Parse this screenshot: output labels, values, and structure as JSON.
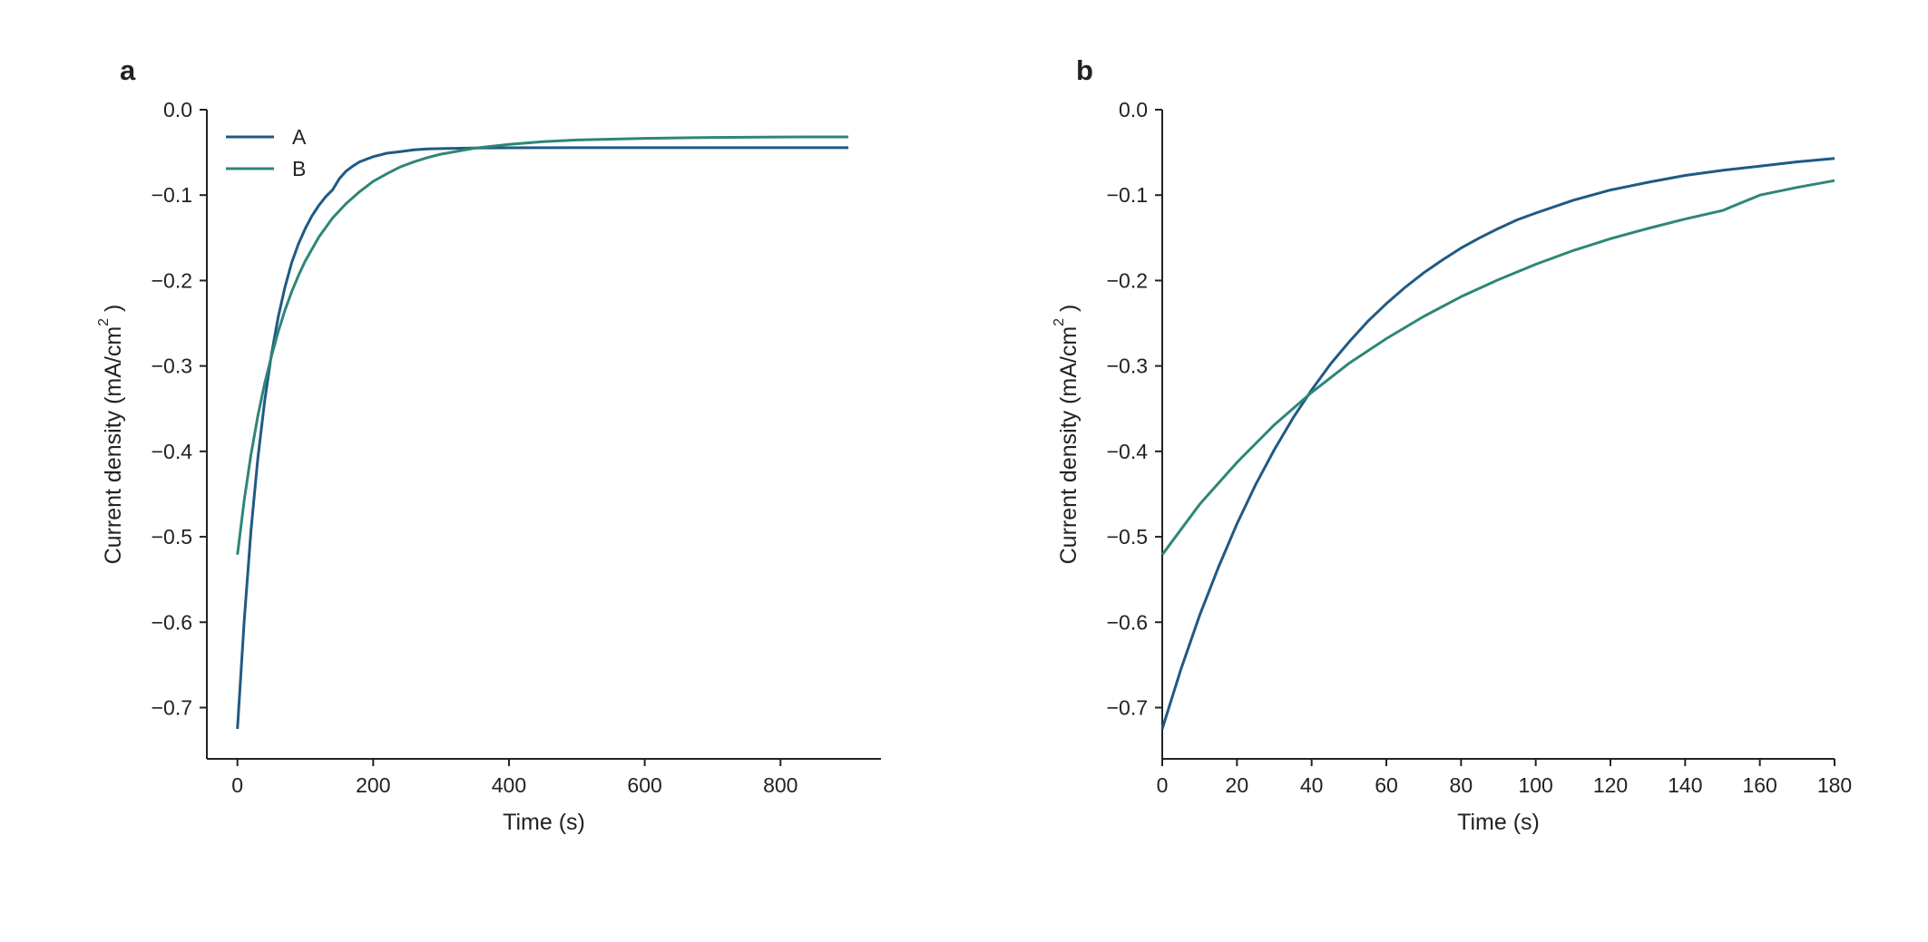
{
  "chart_data": [
    {
      "panel_label": "a",
      "type": "line",
      "xlabel": "Time (s)",
      "ylabel": "Current density (mA/cm",
      "ylabel_sup": "2",
      "ylabel_end": ")",
      "xlim": [
        -45,
        948
      ],
      "ylim": [
        -0.76,
        0.0
      ],
      "xticks": [
        0,
        200,
        400,
        600,
        800
      ],
      "xtick_labels": [
        "0",
        "200",
        "400",
        "600",
        "800"
      ],
      "yticks": [
        0.0,
        -0.1,
        -0.2,
        -0.3,
        -0.4,
        -0.5,
        -0.6,
        -0.7
      ],
      "ytick_labels": [
        "0.0",
        "−0.1",
        "−0.2",
        "−0.3",
        "−0.4",
        "−0.5",
        "−0.6",
        "−0.7"
      ],
      "legend": "top-left",
      "grid": false,
      "series": [
        {
          "name": "A",
          "color": "#1f5a85",
          "x": [
            0,
            10,
            20,
            30,
            40,
            50,
            60,
            70,
            80,
            90,
            100,
            110,
            120,
            130,
            140,
            150,
            160,
            170,
            180,
            200,
            220,
            240,
            260,
            280,
            300,
            350,
            400,
            500,
            600,
            700,
            800,
            900
          ],
          "y": [
            -0.725,
            -0.598,
            -0.493,
            -0.409,
            -0.342,
            -0.287,
            -0.243,
            -0.208,
            -0.179,
            -0.157,
            -0.139,
            -0.124,
            -0.112,
            -0.102,
            -0.094,
            -0.081,
            -0.072,
            -0.066,
            -0.061,
            -0.055,
            -0.051,
            -0.049,
            -0.047,
            -0.046,
            -0.0455,
            -0.0448,
            -0.0446,
            -0.0445,
            -0.0445,
            -0.0445,
            -0.0445,
            -0.0445
          ]
        },
        {
          "name": "B",
          "color": "#2e8678",
          "x": [
            0,
            10,
            20,
            30,
            40,
            50,
            60,
            70,
            80,
            90,
            100,
            120,
            140,
            160,
            180,
            200,
            220,
            240,
            260,
            280,
            300,
            350,
            400,
            450,
            500,
            600,
            700,
            800,
            900
          ],
          "y": [
            -0.521,
            -0.457,
            -0.404,
            -0.359,
            -0.321,
            -0.289,
            -0.26,
            -0.235,
            -0.213,
            -0.194,
            -0.177,
            -0.149,
            -0.127,
            -0.11,
            -0.096,
            -0.084,
            -0.075,
            -0.067,
            -0.061,
            -0.056,
            -0.052,
            -0.045,
            -0.0405,
            -0.0375,
            -0.0355,
            -0.0335,
            -0.0325,
            -0.032,
            -0.0318
          ]
        }
      ]
    },
    {
      "panel_label": "b",
      "type": "line",
      "xlabel": "Time (s)",
      "ylabel": "Current density (mA/cm",
      "ylabel_sup": "2",
      "ylabel_end": ")",
      "xlim": [
        0,
        180
      ],
      "ylim": [
        -0.76,
        0.0
      ],
      "xticks": [
        0,
        20,
        40,
        60,
        80,
        100,
        120,
        140,
        160,
        180
      ],
      "xtick_labels": [
        "0",
        "20",
        "40",
        "60",
        "80",
        "100",
        "120",
        "140",
        "160",
        "180"
      ],
      "yticks": [
        0.0,
        -0.1,
        -0.2,
        -0.3,
        -0.4,
        -0.5,
        -0.6,
        -0.7
      ],
      "ytick_labels": [
        "0.0",
        "−0.1",
        "−0.2",
        "−0.3",
        "−0.4",
        "−0.5",
        "−0.6",
        "−0.7"
      ],
      "grid": false,
      "series": [
        {
          "name": "A",
          "color": "#1f5a85",
          "x": [
            0,
            5,
            10,
            15,
            20,
            25,
            30,
            35,
            40,
            45,
            50,
            55,
            60,
            65,
            70,
            75,
            80,
            85,
            90,
            95,
            100,
            110,
            120,
            130,
            140,
            150,
            160,
            170,
            180
          ],
          "y": [
            -0.725,
            -0.655,
            -0.592,
            -0.536,
            -0.485,
            -0.439,
            -0.398,
            -0.361,
            -0.328,
            -0.298,
            -0.272,
            -0.248,
            -0.227,
            -0.208,
            -0.191,
            -0.176,
            -0.162,
            -0.15,
            -0.139,
            -0.129,
            -0.121,
            -0.106,
            -0.094,
            -0.085,
            -0.077,
            -0.071,
            -0.066,
            -0.061,
            -0.057
          ]
        },
        {
          "name": "B",
          "color": "#2e8678",
          "x": [
            0,
            10,
            20,
            30,
            40,
            50,
            60,
            70,
            80,
            90,
            100,
            110,
            120,
            130,
            140,
            150,
            160,
            170,
            180
          ],
          "y": [
            -0.521,
            -0.462,
            -0.413,
            -0.369,
            -0.331,
            -0.297,
            -0.268,
            -0.242,
            -0.219,
            -0.199,
            -0.181,
            -0.165,
            -0.151,
            -0.139,
            -0.128,
            -0.118,
            -0.1,
            -0.091,
            -0.083
          ]
        }
      ]
    }
  ]
}
